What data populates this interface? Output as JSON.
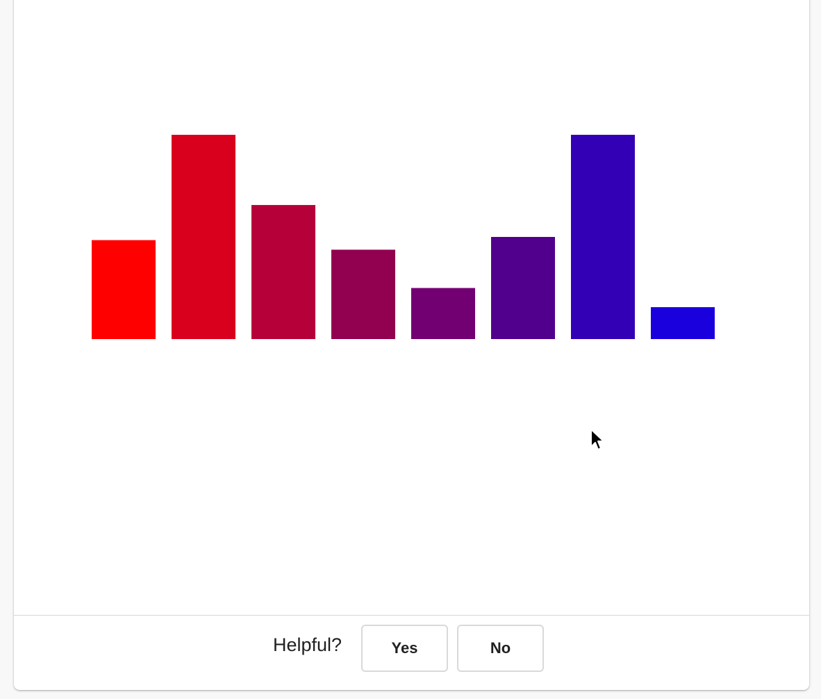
{
  "chart_data": {
    "type": "bar",
    "categories": [
      "",
      "",
      "",
      "",
      "",
      "",
      "",
      ""
    ],
    "values": [
      155,
      320,
      210,
      140,
      80,
      160,
      320,
      50
    ],
    "colors": [
      "#ff0000",
      "#d9001d",
      "#b60039",
      "#920050",
      "#730073",
      "#51008d",
      "#3400b5",
      "#1a00dd"
    ],
    "title": "",
    "xlabel": "",
    "ylabel": "",
    "ylim": [
      0,
      320
    ],
    "grid": false
  },
  "feedback": {
    "question": "Helpful?",
    "yes_label": "Yes",
    "no_label": "No"
  }
}
